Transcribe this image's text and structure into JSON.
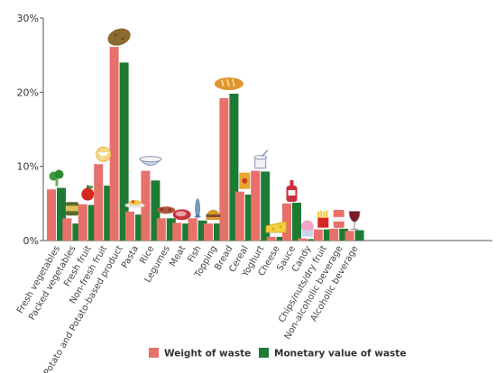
{
  "chart_data": {
    "type": "bar",
    "title": "",
    "xlabel": "",
    "ylabel": "",
    "ylim": [
      0,
      30
    ],
    "yticks": [
      0,
      10,
      20,
      30
    ],
    "ytick_labels": [
      "0%",
      "10%",
      "20%",
      "30%"
    ],
    "grid": "none",
    "legend_position": "bottom",
    "categories": [
      "Fresh vegetables",
      "Packed vegetables",
      "Fresh fruit",
      "Non-fresh fruit",
      "Potato and Potato-based product",
      "Pasta",
      "Rice",
      "Legumes",
      "Meat",
      "Fish",
      "Topping",
      "Bread",
      "Cereal",
      "Yoghurt",
      "Cheese",
      "Sauce",
      "Candy",
      "Chips/nuts/dry fruit",
      "Non-alcoholic beverage",
      "Alcoholic beverage"
    ],
    "series": [
      {
        "name": "Weight of waste",
        "color": "#e8706a",
        "values": [
          6.9,
          3.0,
          4.9,
          10.3,
          26.1,
          3.9,
          9.4,
          3.0,
          2.4,
          3.0,
          2.3,
          19.2,
          6.6,
          9.4,
          0.5,
          5.0,
          0.3,
          1.5,
          1.6,
          1.3
        ]
      },
      {
        "name": "Monetary value of waste",
        "color": "#1e7b34",
        "values": [
          7.1,
          2.3,
          4.8,
          7.4,
          24.0,
          3.5,
          8.1,
          3.0,
          2.3,
          2.7,
          2.3,
          19.8,
          6.2,
          9.3,
          0.5,
          5.1,
          0.2,
          1.5,
          1.6,
          1.4
        ]
      }
    ],
    "legend": {
      "position": "bottom"
    }
  },
  "icons": [
    "broccoli-icon",
    "canned-vegetables-icon",
    "apple-icon",
    "canned-fruit-icon",
    "potato-icon",
    "pasta-plate-icon",
    "rice-bowl-icon",
    "legumes-icon",
    "meat-icon",
    "fish-icon",
    "burger-topping-icon",
    "bread-icon",
    "cereal-box-icon",
    "yoghurt-icon",
    "cheese-icon",
    "sauce-bottle-icon",
    "candy-icon",
    "fries-icon",
    "soda-can-icon",
    "wine-glass-icon"
  ]
}
